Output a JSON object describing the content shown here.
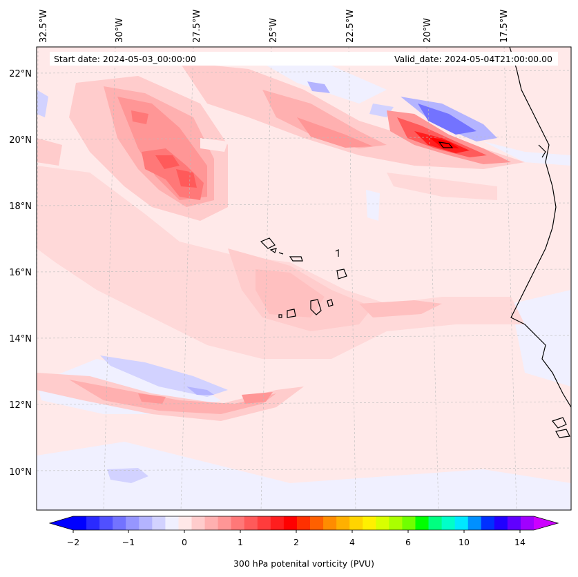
{
  "header": {
    "start_date": "Start date: 2024-05-03_00:00:00",
    "valid_date": "Valid_date: 2024-05-04T21:00:00.00"
  },
  "lon_labels": [
    "32.5°W",
    "30°W",
    "27.5°W",
    "25°W",
    "22.5°W",
    "20°W",
    "17.5°W"
  ],
  "lat_labels": [
    "22°N",
    "20°N",
    "18°N",
    "16°N",
    "14°N",
    "12°N",
    "10°N"
  ],
  "colorbar": {
    "title": "300 hPa potenital vorticity (PVU)",
    "tick_labels": [
      "−2",
      "−1",
      "0",
      "1",
      "2",
      "4",
      "6",
      "10",
      "14"
    ],
    "colors": [
      "#0000ff",
      "#2a2aff",
      "#5050ff",
      "#7373ff",
      "#9696ff",
      "#b4b4ff",
      "#d2d2ff",
      "#f0f0ff",
      "#ffe8e8",
      "#ffcccc",
      "#ffb0b0",
      "#ff9696",
      "#ff7878",
      "#ff5a5a",
      "#ff3c3c",
      "#ff1e1e",
      "#ff0000",
      "#ff3000",
      "#ff6000",
      "#ff8c00",
      "#ffb000",
      "#ffd400",
      "#fff000",
      "#d8ff00",
      "#aaff00",
      "#70ff00",
      "#00ff00",
      "#00ff80",
      "#00ffc8",
      "#00e8ff",
      "#0090ff",
      "#0030ff",
      "#2000ff",
      "#6000ff",
      "#a000ff"
    ],
    "under_color": "#0000ff",
    "over_color": "#cc00ff"
  }
}
